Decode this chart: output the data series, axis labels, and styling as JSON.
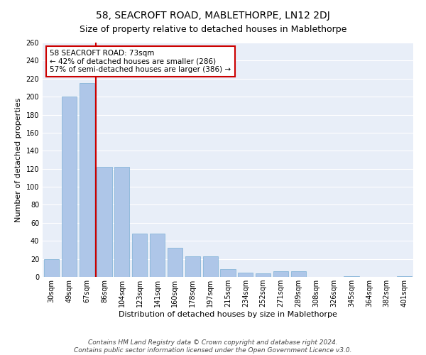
{
  "title": "58, SEACROFT ROAD, MABLETHORPE, LN12 2DJ",
  "subtitle": "Size of property relative to detached houses in Mablethorpe",
  "xlabel": "Distribution of detached houses by size in Mablethorpe",
  "ylabel": "Number of detached properties",
  "categories": [
    "30sqm",
    "49sqm",
    "67sqm",
    "86sqm",
    "104sqm",
    "123sqm",
    "141sqm",
    "160sqm",
    "178sqm",
    "197sqm",
    "215sqm",
    "234sqm",
    "252sqm",
    "271sqm",
    "289sqm",
    "308sqm",
    "326sqm",
    "345sqm",
    "364sqm",
    "382sqm",
    "401sqm"
  ],
  "values": [
    20,
    200,
    215,
    122,
    122,
    48,
    48,
    32,
    23,
    23,
    9,
    5,
    4,
    6,
    6,
    0,
    0,
    1,
    0,
    0,
    1
  ],
  "bar_color": "#aec6e8",
  "bar_edge_color": "#7aafd4",
  "vline_x": 2.5,
  "vline_color": "#cc0000",
  "annotation_text": "58 SEACROFT ROAD: 73sqm\n← 42% of detached houses are smaller (286)\n57% of semi-detached houses are larger (386) →",
  "annotation_box_color": "white",
  "annotation_box_edge_color": "#cc0000",
  "ylim": [
    0,
    260
  ],
  "yticks": [
    0,
    20,
    40,
    60,
    80,
    100,
    120,
    140,
    160,
    180,
    200,
    220,
    240,
    260
  ],
  "background_color": "#e8eef8",
  "grid_color": "#ffffff",
  "footer_text": "Contains HM Land Registry data © Crown copyright and database right 2024.\nContains public sector information licensed under the Open Government Licence v3.0.",
  "title_fontsize": 10,
  "subtitle_fontsize": 9,
  "xlabel_fontsize": 8,
  "ylabel_fontsize": 8,
  "tick_fontsize": 7,
  "annotation_fontsize": 7.5,
  "footer_fontsize": 6.5
}
